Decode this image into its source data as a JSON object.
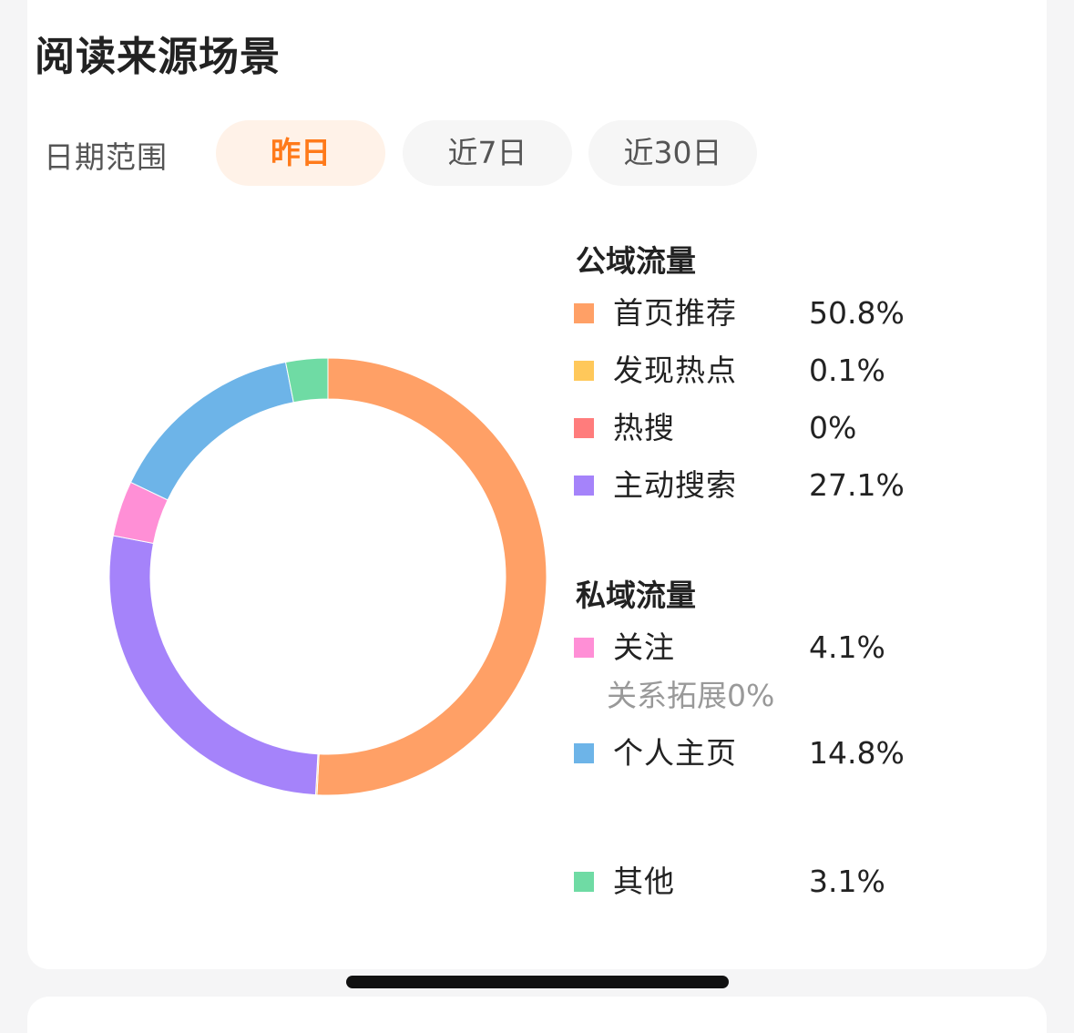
{
  "title": "阅读来源场景",
  "date_range": {
    "label": "日期范围",
    "options": [
      "昨日",
      "近7日",
      "近30日"
    ],
    "selected": 0
  },
  "public_traffic": {
    "title": "公域流量",
    "items": [
      {
        "label": "首页推荐",
        "value": "50.8%"
      },
      {
        "label": "发现热点",
        "value": "0.1%"
      },
      {
        "label": "热搜",
        "value": "0%"
      },
      {
        "label": "主动搜索",
        "value": "27.1%"
      }
    ]
  },
  "private_traffic": {
    "title": "私域流量",
    "items": [
      {
        "label": "关注",
        "value": "4.1%",
        "note": "关系拓展0%"
      },
      {
        "label": "个人主页",
        "value": "14.8%"
      }
    ]
  },
  "other": {
    "label": "其他",
    "value": "3.1%"
  },
  "colors": {
    "首页推荐": "#ffa066",
    "发现热点": "#ffc85a",
    "热搜": "#ff7c7c",
    "主动搜索": "#a583fa",
    "关注": "#ff8fd6",
    "个人主页": "#6db4e8",
    "其他": "#6fdba4",
    "accent": "#ff7a1a"
  },
  "chart_data": {
    "type": "pie",
    "categories": [
      "首页推荐",
      "发现热点",
      "热搜",
      "主动搜索",
      "关注",
      "个人主页",
      "其他"
    ],
    "values": [
      50.8,
      0.1,
      0,
      27.1,
      4.1,
      14.8,
      3.1
    ],
    "unit": "%"
  }
}
